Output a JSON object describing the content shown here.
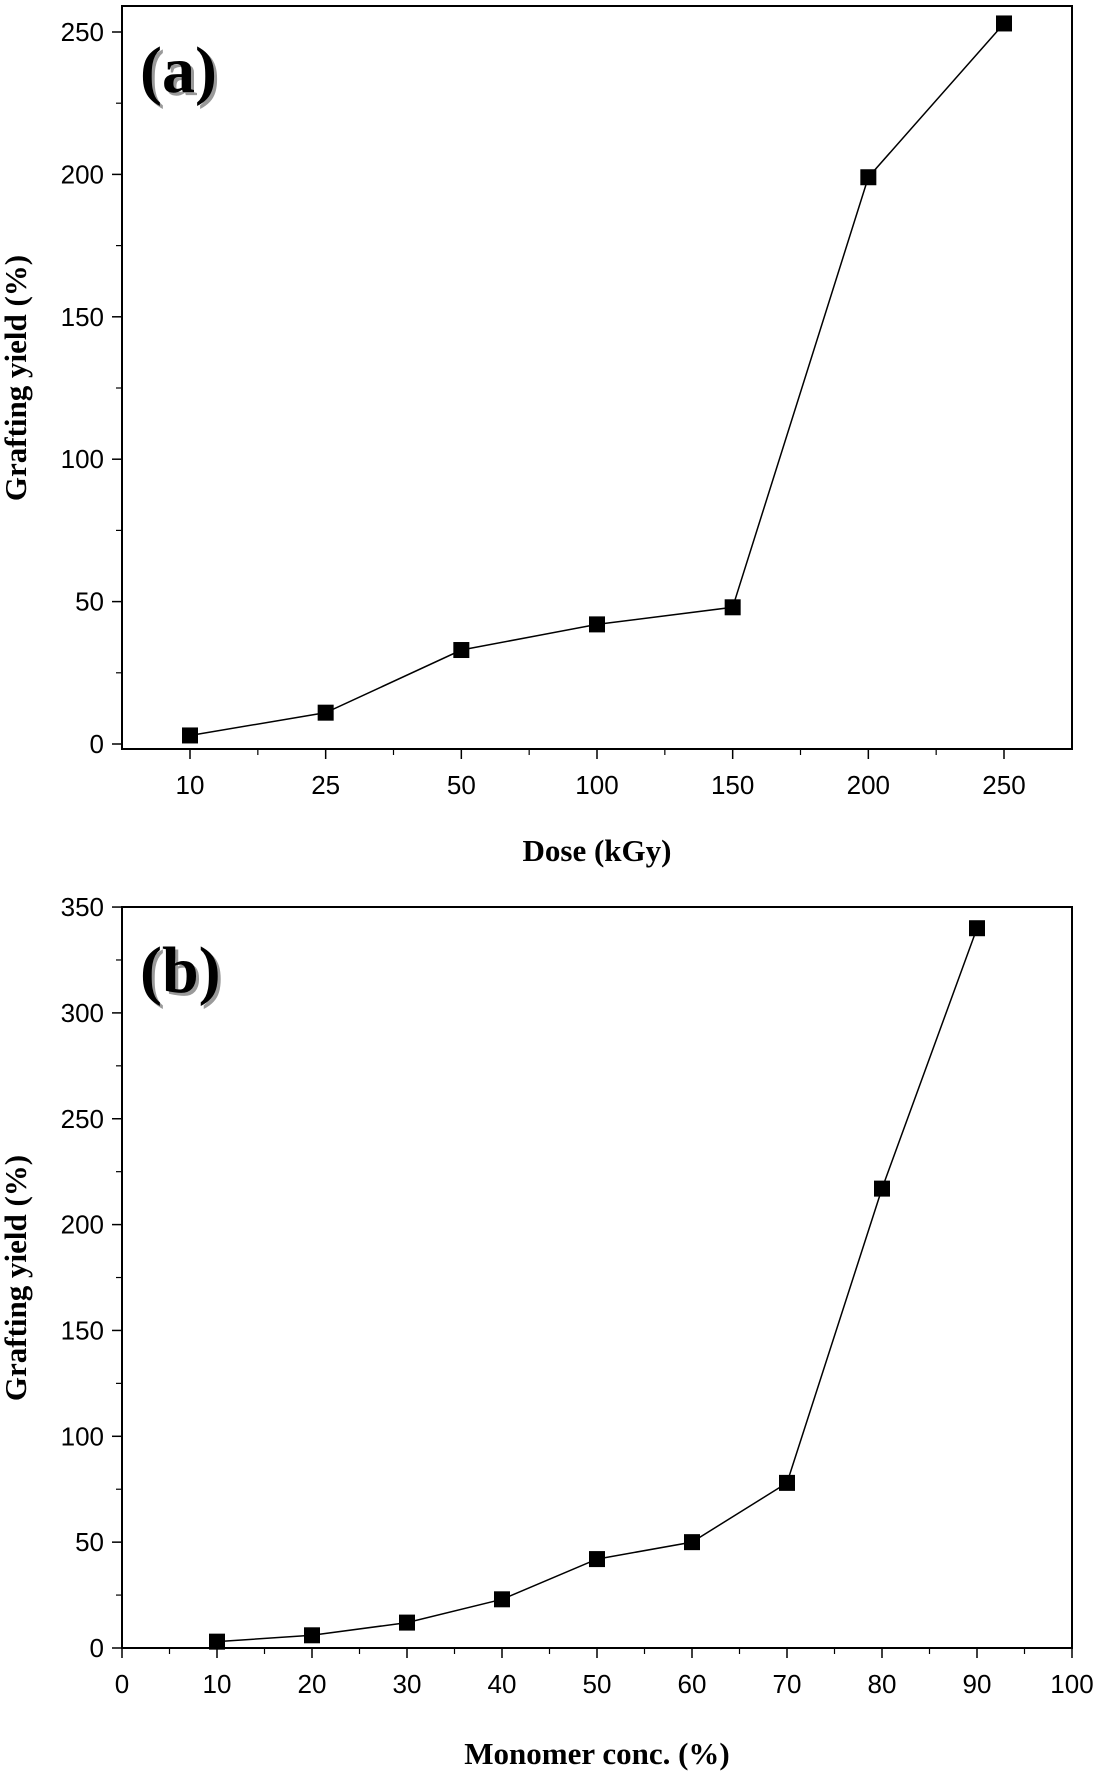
{
  "chart_data": [
    {
      "type": "line",
      "panel_label": "(a)",
      "xlabel": "Dose (kGy)",
      "ylabel": "Grafting yield (%)",
      "x_scale": "categorical",
      "categories": [
        "10",
        "25",
        "50",
        "100",
        "150",
        "200",
        "250"
      ],
      "ylim": [
        0,
        255
      ],
      "yticks": [
        0,
        50,
        100,
        150,
        200,
        250
      ],
      "grid": false,
      "marker": "square",
      "series": [
        {
          "values": [
            3,
            11,
            33,
            42,
            48,
            199,
            253
          ]
        }
      ]
    },
    {
      "type": "line",
      "panel_label": "(b)",
      "xlabel": "Monomer conc. (%)",
      "ylabel": "Grafting yield (%)",
      "x_scale": "linear",
      "xlim": [
        0,
        100
      ],
      "xticks": [
        0,
        10,
        20,
        30,
        40,
        50,
        60,
        70,
        80,
        90,
        100
      ],
      "ylim": [
        0,
        350
      ],
      "yticks": [
        0,
        50,
        100,
        150,
        200,
        250,
        300,
        350
      ],
      "grid": false,
      "marker": "square",
      "series": [
        {
          "x": [
            10,
            20,
            30,
            40,
            50,
            60,
            70,
            80,
            90
          ],
          "values": [
            3,
            6,
            12,
            23,
            42,
            50,
            78,
            217,
            340
          ]
        }
      ]
    }
  ]
}
